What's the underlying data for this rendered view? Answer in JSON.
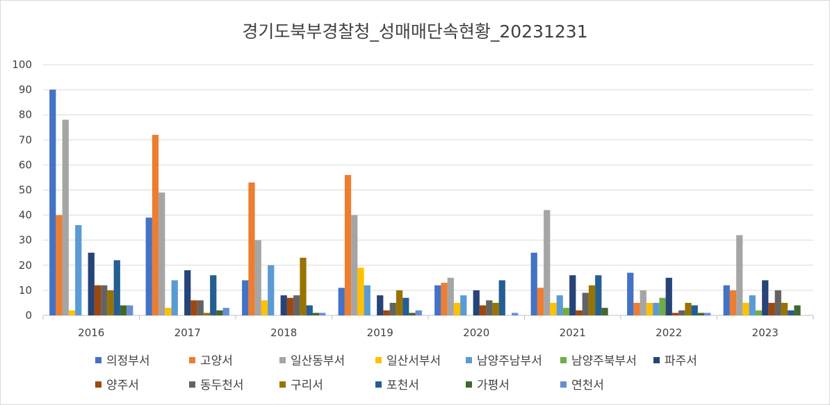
{
  "chart_data": {
    "type": "bar",
    "title": "경기도북부경찰청_성매매단속현황_20231231",
    "categories": [
      "2016",
      "2017",
      "2018",
      "2019",
      "2020",
      "2021",
      "2022",
      "2023"
    ],
    "ylim": [
      0,
      100
    ],
    "yticks": [
      0,
      10,
      20,
      30,
      40,
      50,
      60,
      70,
      80,
      90,
      100
    ],
    "grid": true,
    "legend_position": "bottom",
    "series": [
      {
        "name": "의정부서",
        "color": "#4472c4",
        "values": [
          90,
          39,
          14,
          11,
          12,
          25,
          17,
          12
        ]
      },
      {
        "name": "고양서",
        "color": "#ed7d31",
        "values": [
          40,
          72,
          53,
          56,
          13,
          11,
          5,
          10
        ]
      },
      {
        "name": "일산동부서",
        "color": "#a5a5a5",
        "values": [
          78,
          49,
          30,
          40,
          15,
          42,
          10,
          32
        ]
      },
      {
        "name": "일산서부서",
        "color": "#ffc000",
        "values": [
          2,
          3,
          6,
          19,
          5,
          5,
          5,
          5
        ]
      },
      {
        "name": "남양주남부서",
        "color": "#5b9bd5",
        "values": [
          36,
          14,
          20,
          12,
          8,
          8,
          5,
          8
        ]
      },
      {
        "name": "남양주북부서",
        "color": "#70ad47",
        "values": [
          0,
          0,
          0,
          0,
          0,
          3,
          7,
          2
        ]
      },
      {
        "name": "파주서",
        "color": "#264478",
        "values": [
          25,
          18,
          8,
          8,
          10,
          16,
          15,
          14
        ]
      },
      {
        "name": "양주서",
        "color": "#9e480e",
        "values": [
          12,
          6,
          7,
          2,
          4,
          2,
          1,
          5
        ]
      },
      {
        "name": "동두천서",
        "color": "#636363",
        "values": [
          12,
          6,
          8,
          5,
          6,
          9,
          2,
          10
        ]
      },
      {
        "name": "구리서",
        "color": "#997300",
        "values": [
          10,
          1,
          23,
          10,
          5,
          12,
          5,
          5
        ]
      },
      {
        "name": "포천서",
        "color": "#255e91",
        "values": [
          22,
          16,
          4,
          7,
          14,
          16,
          4,
          2
        ]
      },
      {
        "name": "가평서",
        "color": "#43682b",
        "values": [
          4,
          2,
          1,
          1,
          0,
          3,
          1,
          4
        ]
      },
      {
        "name": "연천서",
        "color": "#698ed0",
        "values": [
          4,
          3,
          1,
          2,
          1,
          0,
          1,
          0
        ]
      }
    ]
  }
}
